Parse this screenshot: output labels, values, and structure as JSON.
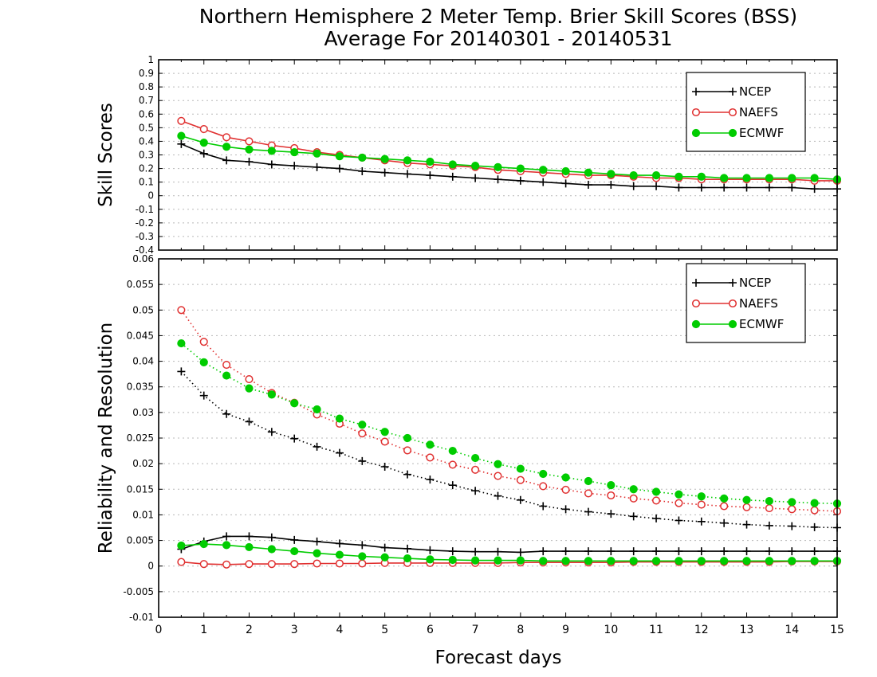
{
  "title_line1": "Northern Hemisphere 2 Meter Temp. Brier Skill Scores (BSS)",
  "title_line2": "Average For 20140301 - 20140531",
  "xlabel": "Forecast days",
  "x_ticks": [
    "0",
    "1",
    "2",
    "3",
    "4",
    "5",
    "6",
    "7",
    "8",
    "9",
    "10",
    "11",
    "12",
    "13",
    "14",
    "15"
  ],
  "colors": {
    "NCEP": "#000000",
    "NAEFS": "#e03030",
    "ECMWF": "#00cc00"
  },
  "chart_data": [
    {
      "type": "line",
      "ylabel": "Skill Scores",
      "xlim": [
        0,
        15
      ],
      "ylim": [
        -0.4,
        1.0
      ],
      "y_ticks": [
        "1",
        "0.9",
        "0.8",
        "0.7",
        "0.6",
        "0.5",
        "0.4",
        "0.3",
        "0.2",
        "0.1",
        "0",
        "-0.1",
        "-0.2",
        "-0.3",
        "-0.4"
      ],
      "grid": true,
      "legend_position": "top-right",
      "x": [
        0.5,
        1,
        1.5,
        2,
        2.5,
        3,
        3.5,
        4,
        4.5,
        5,
        5.5,
        6,
        6.5,
        7,
        7.5,
        8,
        8.5,
        9,
        9.5,
        10,
        10.5,
        11,
        11.5,
        12,
        12.5,
        13,
        13.5,
        14,
        14.5,
        15
      ],
      "series": [
        {
          "name": "NCEP",
          "style": "solid",
          "marker": "plus",
          "values": [
            0.38,
            0.31,
            0.26,
            0.25,
            0.23,
            0.22,
            0.21,
            0.2,
            0.18,
            0.17,
            0.16,
            0.15,
            0.14,
            0.13,
            0.12,
            0.11,
            0.1,
            0.09,
            0.08,
            0.08,
            0.07,
            0.07,
            0.06,
            0.06,
            0.06,
            0.06,
            0.06,
            0.06,
            0.05,
            0.05
          ]
        },
        {
          "name": "NAEFS",
          "style": "solid",
          "marker": "open-circle",
          "values": [
            0.55,
            0.49,
            0.43,
            0.4,
            0.37,
            0.35,
            0.32,
            0.3,
            0.28,
            0.26,
            0.24,
            0.23,
            0.22,
            0.21,
            0.19,
            0.18,
            0.17,
            0.16,
            0.15,
            0.15,
            0.14,
            0.13,
            0.13,
            0.12,
            0.12,
            0.12,
            0.12,
            0.12,
            0.11,
            0.11
          ]
        },
        {
          "name": "ECMWF",
          "style": "solid",
          "marker": "filled-circle",
          "values": [
            0.44,
            0.39,
            0.36,
            0.34,
            0.33,
            0.32,
            0.31,
            0.29,
            0.28,
            0.27,
            0.26,
            0.25,
            0.23,
            0.22,
            0.21,
            0.2,
            0.19,
            0.18,
            0.17,
            0.16,
            0.15,
            0.15,
            0.14,
            0.14,
            0.13,
            0.13,
            0.13,
            0.13,
            0.13,
            0.12
          ]
        }
      ]
    },
    {
      "type": "line",
      "ylabel": "Reliability and Resolution",
      "xlim": [
        0,
        15
      ],
      "ylim": [
        -0.01,
        0.06
      ],
      "y_ticks": [
        "0.06",
        "0.055",
        "0.05",
        "0.045",
        "0.04",
        "0.035",
        "0.03",
        "0.025",
        "0.02",
        "0.015",
        "0.01",
        "0.005",
        "0",
        "-0.005",
        "-0.01"
      ],
      "grid": true,
      "legend_position": "top-right",
      "x": [
        0.5,
        1,
        1.5,
        2,
        2.5,
        3,
        3.5,
        4,
        4.5,
        5,
        5.5,
        6,
        6.5,
        7,
        7.5,
        8,
        8.5,
        9,
        9.5,
        10,
        10.5,
        11,
        11.5,
        12,
        12.5,
        13,
        13.5,
        14,
        14.5,
        15
      ],
      "series": [
        {
          "name": "NCEP",
          "style": "dotted",
          "marker": "plus",
          "values": [
            0.038,
            0.0333,
            0.0297,
            0.0282,
            0.0262,
            0.0249,
            0.0233,
            0.0221,
            0.0205,
            0.0194,
            0.0179,
            0.0169,
            0.0158,
            0.0147,
            0.0137,
            0.0129,
            0.0117,
            0.0111,
            0.0106,
            0.0102,
            0.0097,
            0.0093,
            0.0089,
            0.0087,
            0.0084,
            0.0081,
            0.0079,
            0.0078,
            0.0076,
            0.0075
          ]
        },
        {
          "name": "NAEFS",
          "style": "dotted",
          "marker": "open-circle",
          "values": [
            0.05,
            0.0438,
            0.0393,
            0.0365,
            0.0338,
            0.0319,
            0.0296,
            0.0278,
            0.0259,
            0.0243,
            0.0226,
            0.0212,
            0.0198,
            0.0188,
            0.0176,
            0.0168,
            0.0156,
            0.0149,
            0.0142,
            0.0138,
            0.0132,
            0.0128,
            0.0123,
            0.012,
            0.0117,
            0.0115,
            0.0113,
            0.0111,
            0.0109,
            0.0107
          ]
        },
        {
          "name": "ECMWF",
          "style": "dotted",
          "marker": "filled-circle",
          "values": [
            0.0435,
            0.0398,
            0.0372,
            0.0347,
            0.0335,
            0.0318,
            0.0306,
            0.0288,
            0.0276,
            0.0262,
            0.025,
            0.0237,
            0.0225,
            0.0211,
            0.0199,
            0.019,
            0.018,
            0.0173,
            0.0166,
            0.0158,
            0.015,
            0.0145,
            0.014,
            0.0136,
            0.0132,
            0.0129,
            0.0127,
            0.0125,
            0.0123,
            0.0122
          ]
        },
        {
          "name": "NCEP",
          "style": "solid",
          "marker": "plus",
          "values": [
            0.0033,
            0.0048,
            0.0058,
            0.0058,
            0.0056,
            0.0051,
            0.0048,
            0.0044,
            0.0041,
            0.0036,
            0.0034,
            0.0031,
            0.0029,
            0.0028,
            0.0028,
            0.0027,
            0.0029,
            0.0029,
            0.0029,
            0.0029,
            0.0029,
            0.0029,
            0.0029,
            0.0029,
            0.0029,
            0.0029,
            0.0029,
            0.0029,
            0.0029,
            0.0029
          ]
        },
        {
          "name": "NAEFS",
          "style": "solid",
          "marker": "open-circle",
          "values": [
            0.0008,
            0.0004,
            0.0003,
            0.0004,
            0.0004,
            0.0004,
            0.0005,
            0.0005,
            0.0005,
            0.0006,
            0.0006,
            0.0006,
            0.0006,
            0.0006,
            0.0006,
            0.0007,
            0.0007,
            0.0007,
            0.0007,
            0.0007,
            0.0008,
            0.0008,
            0.0008,
            0.0008,
            0.0008,
            0.0008,
            0.0008,
            0.0009,
            0.0009,
            0.0009
          ]
        },
        {
          "name": "ECMWF",
          "style": "solid",
          "marker": "filled-circle",
          "values": [
            0.004,
            0.0043,
            0.0041,
            0.0037,
            0.0033,
            0.0029,
            0.0025,
            0.0022,
            0.0019,
            0.0017,
            0.0015,
            0.0013,
            0.0012,
            0.0011,
            0.0011,
            0.0011,
            0.001,
            0.001,
            0.001,
            0.001,
            0.001,
            0.001,
            0.001,
            0.001,
            0.001,
            0.001,
            0.001,
            0.001,
            0.001,
            0.001
          ]
        }
      ]
    }
  ]
}
